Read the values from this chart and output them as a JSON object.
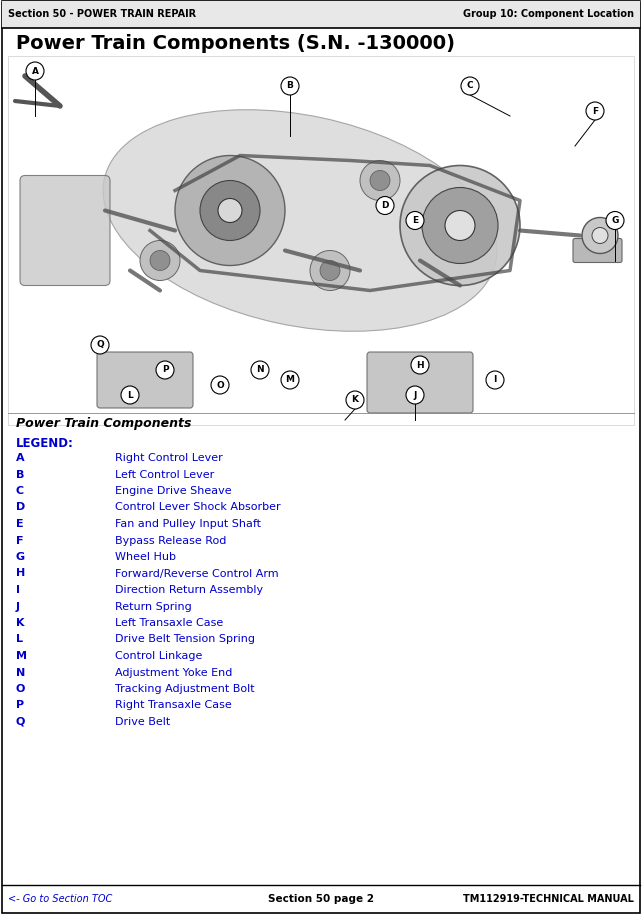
{
  "header_left": "Section 50 - POWER TRAIN REPAIR",
  "header_right": "Group 10: Component Location",
  "title": "Power Train Components (S.N. -130000)",
  "section_label": "Power Train Components",
  "legend_title": "LEGEND:",
  "legend_items": [
    [
      "A",
      "Right Control Lever"
    ],
    [
      "B",
      "Left Control Lever"
    ],
    [
      "C",
      "Engine Drive Sheave"
    ],
    [
      "D",
      "Control Lever Shock Absorber"
    ],
    [
      "E",
      "Fan and Pulley Input Shaft"
    ],
    [
      "F",
      "Bypass Release Rod"
    ],
    [
      "G",
      "Wheel Hub"
    ],
    [
      "H",
      "Forward/Reverse Control Arm"
    ],
    [
      "I",
      "Direction Return Assembly"
    ],
    [
      "J",
      "Return Spring"
    ],
    [
      "K",
      "Left Transaxle Case"
    ],
    [
      "L",
      "Drive Belt Tension Spring"
    ],
    [
      "M",
      "Control Linkage"
    ],
    [
      "N",
      "Adjustment Yoke End"
    ],
    [
      "O",
      "Tracking Adjustment Bolt"
    ],
    [
      "P",
      "Right Transaxle Case"
    ],
    [
      "Q",
      "Drive Belt"
    ]
  ],
  "footer_left": "<- Go to Section TOC",
  "footer_center": "Section 50 page 2",
  "footer_right": "TM112919-TECHNICAL MANUAL",
  "blue_color": "#0000CC",
  "header_bg": "#e8e8e8",
  "body_bg": "#ffffff",
  "border_color": "#000000",
  "text_color": "#000000"
}
